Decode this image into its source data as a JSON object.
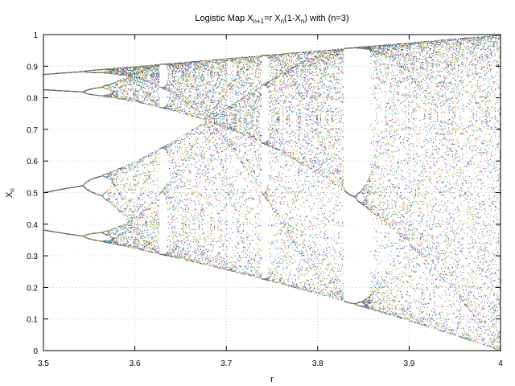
{
  "chart_data": {
    "type": "scatter",
    "title_main": "Logistic Map X",
    "title_sub1": "n+1",
    "title_mid1": "=r X",
    "title_sub2": "n",
    "title_mid2": "(1-X",
    "title_sub3": "n",
    "title_end": ") with (n=3)",
    "xlabel": "r",
    "ylabel_main": "X",
    "ylabel_sub": "n",
    "xlim": [
      3.5,
      4.0
    ],
    "ylim": [
      0,
      1
    ],
    "x_ticks": [
      "3.5",
      "3.6",
      "3.7",
      "3.8",
      "3.9",
      "4"
    ],
    "y_ticks": [
      "0",
      "0.1",
      "0.2",
      "0.3",
      "0.4",
      "0.5",
      "0.6",
      "0.7",
      "0.8",
      "0.9",
      "1"
    ],
    "x_tick_values": [
      3.5,
      3.6,
      3.7,
      3.8,
      3.9,
      4.0
    ],
    "y_tick_values": [
      0,
      0.1,
      0.2,
      0.3,
      0.4,
      0.5,
      0.6,
      0.7,
      0.8,
      0.9,
      1.0
    ],
    "grid": true,
    "equation": "X(n+1) = r * X(n) * (1 - X(n))",
    "r_range": [
      3.5,
      4.0
    ],
    "colors": [
      "#e6a000",
      "#1a9ab0",
      "#9400d3",
      "#009e73",
      "#1a3d8f",
      "#e69f00"
    ]
  }
}
